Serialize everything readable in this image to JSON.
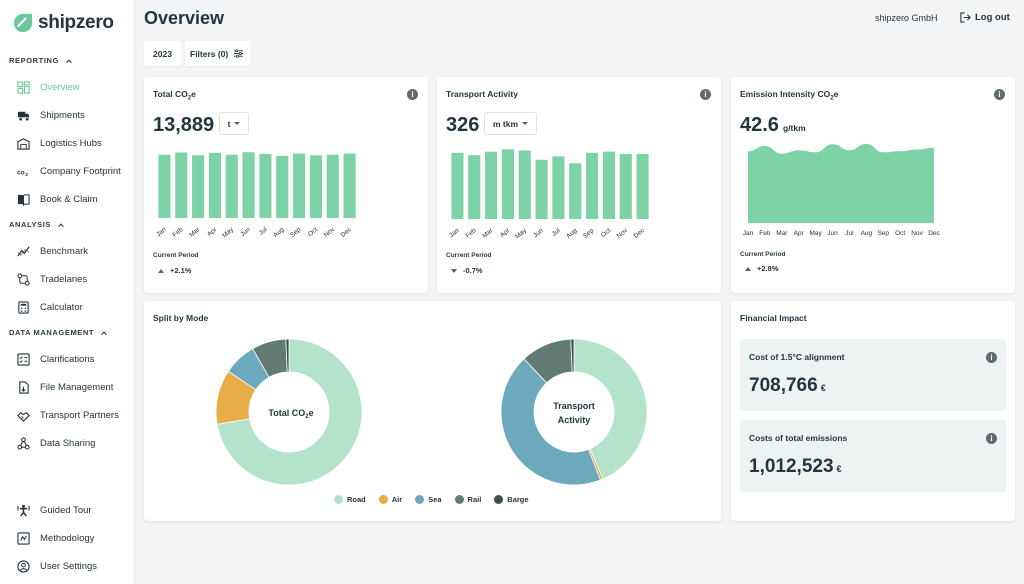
{
  "colors": {
    "accent": "#6cc79a",
    "bar": "#7dd3a6",
    "road": "#b3e4cb",
    "air": "#e8ad46",
    "sea": "#6da9bd",
    "rail": "#617a73",
    "barge": "#3e4d4f",
    "text": "#23363d"
  },
  "brand": {
    "name": "shipzero"
  },
  "sidebar": {
    "sections": [
      {
        "label": "REPORTING",
        "items": [
          {
            "label": "Overview",
            "icon": "dashboard-icon",
            "active": true
          },
          {
            "label": "Shipments",
            "icon": "truck-icon"
          },
          {
            "label": "Logistics Hubs",
            "icon": "warehouse-icon"
          },
          {
            "label": "Company Footprint",
            "icon": "co2-icon"
          },
          {
            "label": "Book & Claim",
            "icon": "book-icon"
          }
        ]
      },
      {
        "label": "ANALYSIS",
        "items": [
          {
            "label": "Benchmark",
            "icon": "trend-icon"
          },
          {
            "label": "Tradelanes",
            "icon": "route-icon"
          },
          {
            "label": "Calculator",
            "icon": "calculator-icon"
          }
        ]
      },
      {
        "label": "DATA MANAGEMENT",
        "items": [
          {
            "label": "Clarifications",
            "icon": "checklist-icon"
          },
          {
            "label": "File Management",
            "icon": "file-icon"
          },
          {
            "label": "Transport Partners",
            "icon": "handshake-icon"
          },
          {
            "label": "Data Sharing",
            "icon": "share-icon"
          }
        ]
      }
    ],
    "footer": [
      {
        "label": "Guided Tour",
        "icon": "tour-icon"
      },
      {
        "label": "Methodology",
        "icon": "methodology-icon"
      },
      {
        "label": "User Settings",
        "icon": "user-icon"
      }
    ]
  },
  "header": {
    "title": "Overview",
    "company": "shipzero GmbH",
    "logout": "Log out",
    "year": "2023",
    "filters": "Filters (0)"
  },
  "cards": {
    "total": {
      "title_main": "Total CO",
      "title_sub": "2",
      "title_end": "e",
      "value": "13,889",
      "unit": "t",
      "period_label": "Current Period",
      "change": "+2.1%"
    },
    "activity": {
      "title": "Transport Activity",
      "value": "326",
      "unit": "m tkm",
      "period_label": "Current Period",
      "change": "-0.7%"
    },
    "intensity": {
      "title_main": "Emission Intensity CO",
      "title_sub": "2",
      "title_end": "e",
      "value": "42.6",
      "unit": "g/tkm",
      "period_label": "Current Period",
      "change": "+2.8%"
    },
    "split": {
      "title": "Split by Mode",
      "donut1_line1": "Total CO",
      "donut1_sub": "2",
      "donut1_end": "e",
      "donut2_line1": "Transport",
      "donut2_line2": "Activity"
    },
    "financial": {
      "title": "Financial Impact",
      "alignment_label": "Cost of 1.5°C alignment",
      "alignment_value": "708,766",
      "alignment_currency": "€",
      "total_label": "Costs of total emissions",
      "total_value": "1,012,523",
      "total_currency": "€"
    }
  },
  "chart_data": [
    {
      "type": "bar",
      "title": "Total CO2e",
      "categories": [
        "Jan",
        "Feb",
        "Mar",
        "Apr",
        "May",
        "Jun",
        "Jul",
        "Aug",
        "Sep",
        "Oct",
        "Nov",
        "Dec"
      ],
      "values": [
        1130,
        1170,
        1120,
        1165,
        1130,
        1175,
        1145,
        1110,
        1150,
        1120,
        1130,
        1150
      ],
      "ylim": [
        0,
        1250
      ]
    },
    {
      "type": "bar",
      "title": "Transport Activity",
      "categories": [
        "Jan",
        "Feb",
        "Mar",
        "Apr",
        "May",
        "Jun",
        "Jul",
        "Aug",
        "Sep",
        "Oct",
        "Nov",
        "Dec"
      ],
      "values": [
        28.5,
        27.5,
        29.0,
        30.0,
        29.5,
        25.5,
        27.0,
        24.0,
        28.5,
        29.0,
        28.0,
        28.0
      ],
      "ylim": [
        0,
        31
      ]
    },
    {
      "type": "area",
      "title": "Emission Intensity CO2e",
      "categories": [
        "Jan",
        "Feb",
        "Mar",
        "Apr",
        "May",
        "Jun",
        "Jul",
        "Aug",
        "Sep",
        "Oct",
        "Nov",
        "Dec"
      ],
      "values": [
        40.5,
        42.0,
        39.8,
        40.8,
        40.2,
        42.5,
        40.8,
        42.6,
        40.2,
        40.5,
        41.0,
        41.5
      ],
      "ylim": [
        20,
        44
      ]
    },
    {
      "type": "pie",
      "title": "Total CO2e",
      "categories": [
        "Road",
        "Air",
        "Sea",
        "Rail",
        "Barge"
      ],
      "values": [
        72.3,
        12.1,
        7.3,
        7.6,
        0.7
      ]
    },
    {
      "type": "pie",
      "title": "Transport Activity",
      "categories": [
        "Road",
        "Air",
        "Sea",
        "Rail",
        "Barge"
      ],
      "values": [
        43.5,
        0.6,
        43.9,
        11.3,
        0.7
      ]
    }
  ],
  "legend": [
    {
      "label": "Road",
      "color": "#b3e4cb"
    },
    {
      "label": "Air",
      "color": "#e8ad46"
    },
    {
      "label": "Sea",
      "color": "#6da9bd"
    },
    {
      "label": "Rail",
      "color": "#617a73"
    },
    {
      "label": "Barge",
      "color": "#3e4d4f"
    }
  ]
}
